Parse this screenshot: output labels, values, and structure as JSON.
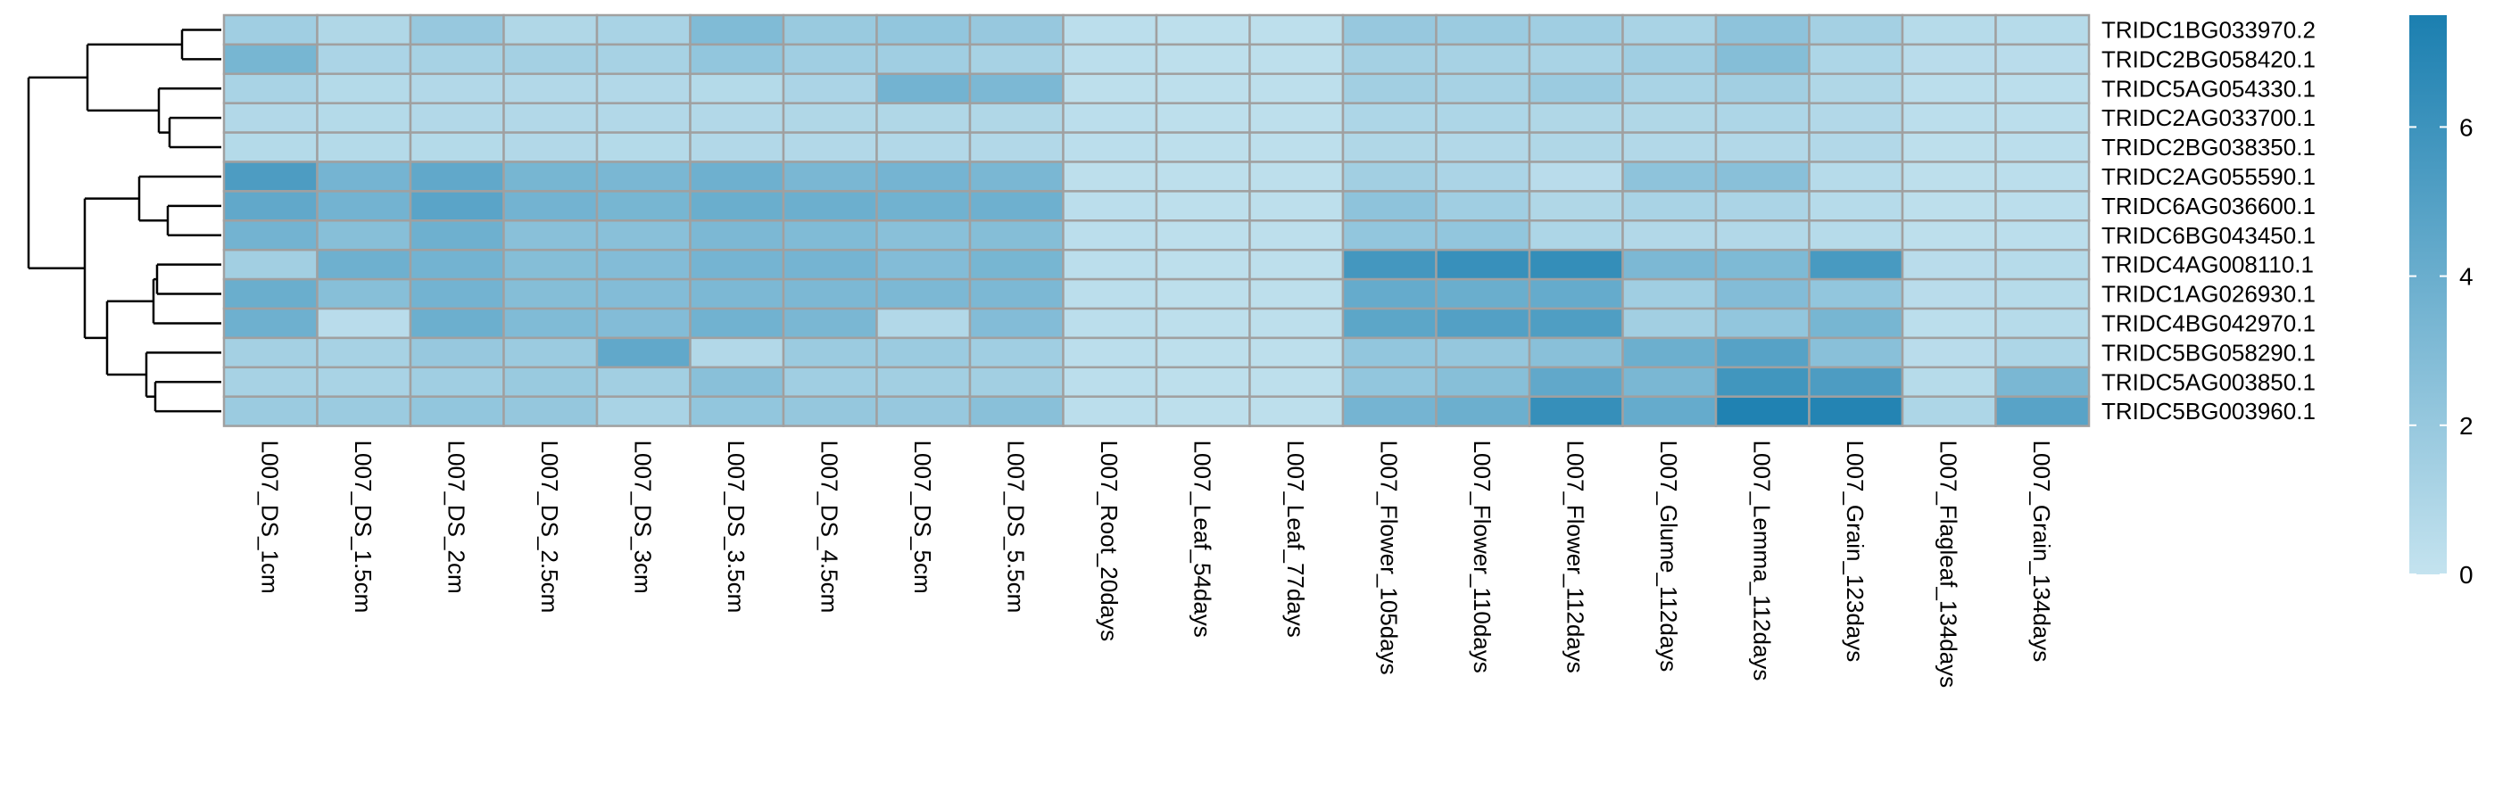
{
  "chart_data": {
    "type": "heatmap",
    "title": "",
    "rows": [
      "TRIDC1BG033970.2",
      "TRIDC2BG058420.1",
      "TRIDC5AG054330.1",
      "TRIDC2AG033700.1",
      "TRIDC2BG038350.1",
      "TRIDC2AG055590.1",
      "TRIDC6AG036600.1",
      "TRIDC6BG043450.1",
      "TRIDC4AG008110.1",
      "TRIDC1AG026930.1",
      "TRIDC4BG042970.1",
      "TRIDC5BG058290.1",
      "TRIDC5AG003850.1",
      "TRIDC5BG003960.1"
    ],
    "columns": [
      "L007_DS_1cm",
      "L007_DS_1.5cm",
      "L007_DS_2cm",
      "L007_DS_2.5cm",
      "L007_DS_3cm",
      "L007_DS_3.5cm",
      "L007_DS_4.5cm",
      "L007_DS_5cm",
      "L007_DS_5.5cm",
      "L007_Root_20days",
      "L007_Leaf_54days",
      "L007_Leaf_77days",
      "L007_Flower_105days",
      "L007_Flower_110days",
      "L007_Flower_112days",
      "L007_Glume_112days",
      "L007_Lemma_112days",
      "L007_Grain_123days",
      "L007_Flagleaf_134days",
      "L007_Grain_134days"
    ],
    "values": [
      [
        1.6,
        0.9,
        2.0,
        0.9,
        1.2,
        3.0,
        1.9,
        2.2,
        2.0,
        0.4,
        0.3,
        0.3,
        2.0,
        1.8,
        1.6,
        1.2,
        2.4,
        1.4,
        0.6,
        0.6
      ],
      [
        3.4,
        1.1,
        1.3,
        1.4,
        1.3,
        2.2,
        1.6,
        1.6,
        1.3,
        0.4,
        0.3,
        0.3,
        1.4,
        1.3,
        1.2,
        1.6,
        2.8,
        1.0,
        0.5,
        0.5
      ],
      [
        1.2,
        0.7,
        0.8,
        0.8,
        0.8,
        0.7,
        1.1,
        3.6,
        3.2,
        0.3,
        0.3,
        0.3,
        1.5,
        1.3,
        1.8,
        1.2,
        1.5,
        0.9,
        0.4,
        0.4
      ],
      [
        0.8,
        0.7,
        0.8,
        0.8,
        0.8,
        0.8,
        0.9,
        0.9,
        0.9,
        0.4,
        0.3,
        0.3,
        1.0,
        1.0,
        0.9,
        0.9,
        1.0,
        0.8,
        0.4,
        0.4
      ],
      [
        0.7,
        0.7,
        0.7,
        0.8,
        0.7,
        0.8,
        0.8,
        0.8,
        0.8,
        0.4,
        0.3,
        0.3,
        0.9,
        0.8,
        0.9,
        0.8,
        0.8,
        0.8,
        0.3,
        0.4
      ],
      [
        5.3,
        3.5,
        4.4,
        3.4,
        3.3,
        3.8,
        3.3,
        3.5,
        3.3,
        0.3,
        0.3,
        0.3,
        1.5,
        1.1,
        0.5,
        2.4,
        2.6,
        0.6,
        0.3,
        0.4
      ],
      [
        4.4,
        3.6,
        4.7,
        3.6,
        3.4,
        4.0,
        3.9,
        3.7,
        3.8,
        0.4,
        0.3,
        0.3,
        2.4,
        1.6,
        0.9,
        1.2,
        1.1,
        0.6,
        0.3,
        0.4
      ],
      [
        3.6,
        2.7,
        3.8,
        2.6,
        2.6,
        3.2,
        3.0,
        2.6,
        2.8,
        0.4,
        0.3,
        0.3,
        2.2,
        2.2,
        1.0,
        0.8,
        0.8,
        0.6,
        0.3,
        0.4
      ],
      [
        1.5,
        3.8,
        3.6,
        2.8,
        2.9,
        3.5,
        3.5,
        2.9,
        3.4,
        0.4,
        0.3,
        0.3,
        5.7,
        6.2,
        6.4,
        3.2,
        3.1,
        5.5,
        0.5,
        0.6
      ],
      [
        4.0,
        2.7,
        3.6,
        2.8,
        2.9,
        3.2,
        3.2,
        3.2,
        3.2,
        0.4,
        0.3,
        0.3,
        4.2,
        4.0,
        4.2,
        1.6,
        2.9,
        2.2,
        0.5,
        0.6
      ],
      [
        3.8,
        0.5,
        3.9,
        3.0,
        2.9,
        3.7,
        3.3,
        0.8,
        2.9,
        0.4,
        0.3,
        0.3,
        4.6,
        5.0,
        5.2,
        1.5,
        2.2,
        3.4,
        0.4,
        0.6
      ],
      [
        1.4,
        1.3,
        2.0,
        1.8,
        4.4,
        0.8,
        1.8,
        1.8,
        1.6,
        0.4,
        0.3,
        0.3,
        2.2,
        2.1,
        2.6,
        3.9,
        4.9,
        2.6,
        0.5,
        1.0
      ],
      [
        1.3,
        1.2,
        1.6,
        1.9,
        1.5,
        2.6,
        1.6,
        1.5,
        1.5,
        0.4,
        0.3,
        0.3,
        2.2,
        2.7,
        4.4,
        3.3,
        5.8,
        5.3,
        0.6,
        3.3
      ],
      [
        1.8,
        1.8,
        2.2,
        2.1,
        1.2,
        2.2,
        2.1,
        2.0,
        2.6,
        0.4,
        0.3,
        0.3,
        3.5,
        3.9,
        6.3,
        4.2,
        7.3,
        7.1,
        1.0,
        4.8
      ]
    ],
    "color_scale": {
      "min": 0,
      "max": 7.5,
      "low_color": "#c4e3ef",
      "high_color": "#1b7fb0",
      "ticks": [
        0,
        2,
        4,
        6
      ],
      "tick_labels": [
        "0",
        "2",
        "4",
        "6"
      ]
    },
    "grid_color": "#a0a0a0",
    "row_dendrogram": true,
    "legend_placement": "right"
  }
}
